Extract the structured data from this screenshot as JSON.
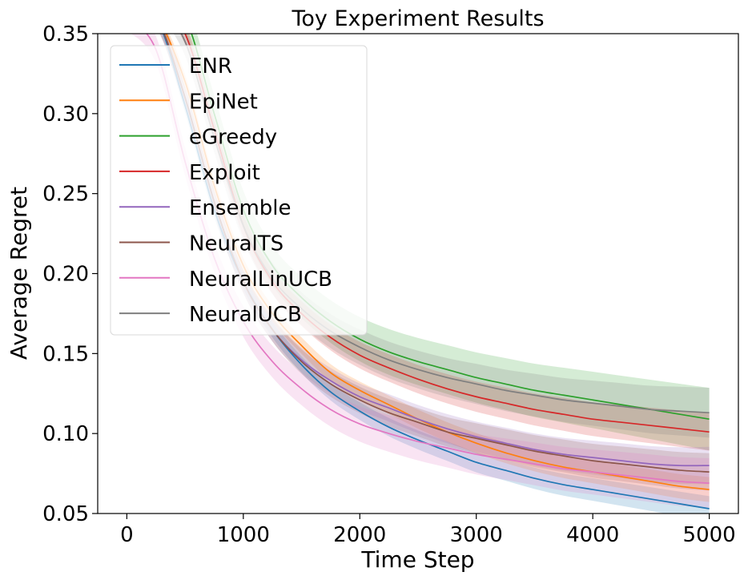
{
  "chart_data": {
    "type": "line",
    "title": "Toy Experiment Results",
    "xlabel": "Time Step",
    "ylabel": "Average Regret",
    "xlim": [
      -250,
      5250
    ],
    "ylim": [
      0.05,
      0.35
    ],
    "xticks": [
      0,
      1000,
      2000,
      3000,
      4000,
      5000
    ],
    "xtick_labels": [
      "0",
      "1000",
      "2000",
      "3000",
      "4000",
      "5000"
    ],
    "yticks": [
      0.05,
      0.1,
      0.15,
      0.2,
      0.25,
      0.3,
      0.35
    ],
    "ytick_labels": [
      "0.05",
      "0.10",
      "0.15",
      "0.20",
      "0.25",
      "0.30",
      "0.35"
    ],
    "legend_position": "top-left",
    "grid": false,
    "x": [
      0,
      250,
      500,
      750,
      1000,
      1250,
      1500,
      1750,
      2000,
      2250,
      2500,
      2750,
      3000,
      3250,
      3500,
      3750,
      4000,
      4250,
      4500,
      4750,
      5000
    ],
    "series": [
      {
        "name": "ENR",
        "color": "#1f77b4",
        "values": [
          0.36,
          0.36,
          0.305,
          0.24,
          0.195,
          0.165,
          0.143,
          0.126,
          0.114,
          0.104,
          0.096,
          0.089,
          0.082,
          0.077,
          0.072,
          0.068,
          0.065,
          0.062,
          0.059,
          0.056,
          0.053
        ],
        "band": 0.004
      },
      {
        "name": "EpiNet",
        "color": "#ff7f0e",
        "values": [
          0.36,
          0.36,
          0.32,
          0.255,
          0.205,
          0.175,
          0.155,
          0.138,
          0.127,
          0.118,
          0.109,
          0.101,
          0.094,
          0.088,
          0.083,
          0.079,
          0.076,
          0.073,
          0.07,
          0.067,
          0.065
        ],
        "band": 0.004
      },
      {
        "name": "eGreedy",
        "color": "#2ca02c",
        "values": [
          0.37,
          0.37,
          0.36,
          0.3,
          0.24,
          0.205,
          0.185,
          0.17,
          0.159,
          0.151,
          0.145,
          0.14,
          0.135,
          0.131,
          0.127,
          0.124,
          0.121,
          0.118,
          0.115,
          0.112,
          0.109
        ],
        "band": 0.01
      },
      {
        "name": "Exploit",
        "color": "#d62728",
        "values": [
          0.37,
          0.37,
          0.35,
          0.29,
          0.23,
          0.195,
          0.175,
          0.16,
          0.149,
          0.141,
          0.134,
          0.128,
          0.123,
          0.119,
          0.115,
          0.112,
          0.109,
          0.107,
          0.105,
          0.103,
          0.101
        ],
        "band": 0.006
      },
      {
        "name": "Ensemble",
        "color": "#9467bd",
        "values": [
          0.36,
          0.36,
          0.31,
          0.245,
          0.195,
          0.165,
          0.146,
          0.133,
          0.123,
          0.116,
          0.109,
          0.103,
          0.098,
          0.094,
          0.09,
          0.087,
          0.085,
          0.083,
          0.081,
          0.08,
          0.08
        ],
        "band": 0.006
      },
      {
        "name": "NeuralTS",
        "color": "#8c564b",
        "values": [
          0.36,
          0.36,
          0.31,
          0.245,
          0.195,
          0.165,
          0.145,
          0.131,
          0.121,
          0.113,
          0.107,
          0.101,
          0.097,
          0.093,
          0.089,
          0.086,
          0.083,
          0.081,
          0.079,
          0.077,
          0.076
        ],
        "band": 0.006
      },
      {
        "name": "NeuralLinUCB",
        "color": "#e377c2",
        "values": [
          0.36,
          0.34,
          0.27,
          0.21,
          0.17,
          0.145,
          0.128,
          0.115,
          0.106,
          0.1,
          0.095,
          0.091,
          0.087,
          0.084,
          0.081,
          0.078,
          0.076,
          0.074,
          0.072,
          0.07,
          0.069
        ],
        "band": 0.008
      },
      {
        "name": "NeuralUCB",
        "color": "#7f7f7f",
        "values": [
          0.37,
          0.37,
          0.345,
          0.285,
          0.23,
          0.197,
          0.178,
          0.164,
          0.154,
          0.146,
          0.14,
          0.135,
          0.131,
          0.127,
          0.124,
          0.121,
          0.119,
          0.117,
          0.115,
          0.114,
          0.113
        ],
        "band": 0.008
      }
    ]
  }
}
